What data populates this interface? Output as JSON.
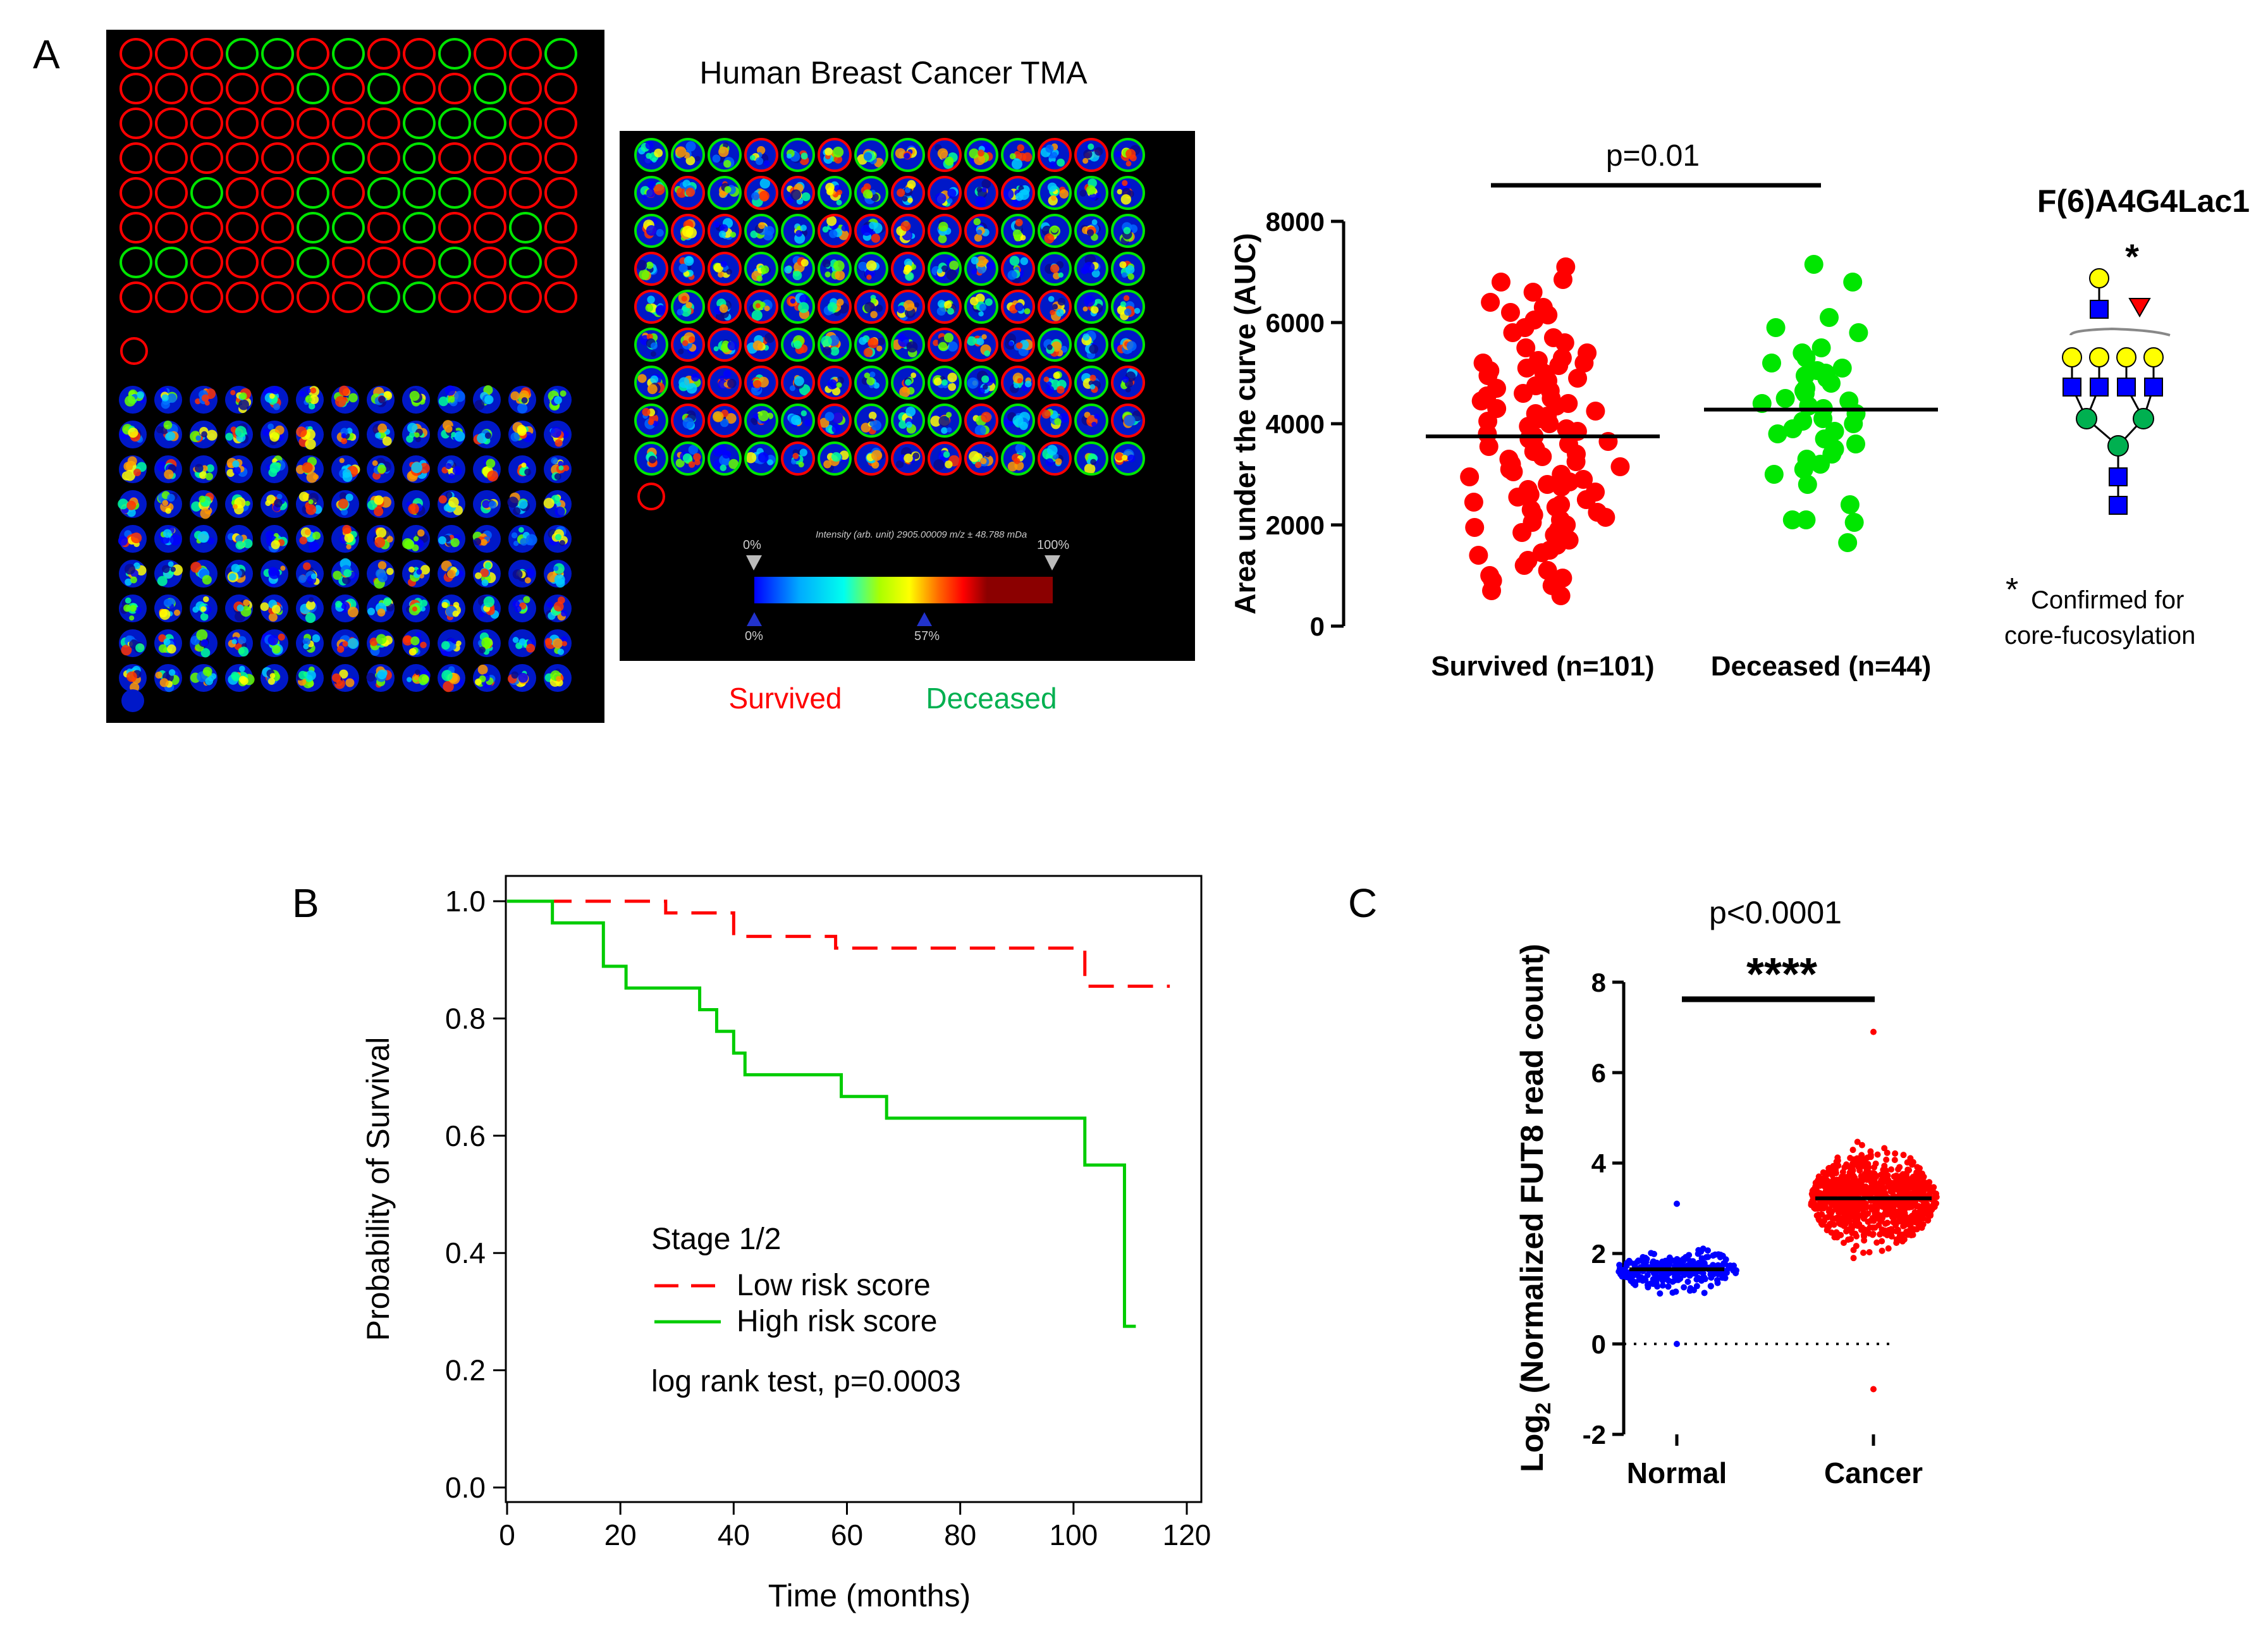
{
  "colors": {
    "survived": "#ff0000",
    "deceased": "#00e600",
    "low_risk": "#ff0000",
    "high_risk": "#00cc00",
    "normal": "#0000ff",
    "cancer": "#ff0000",
    "glycan_galactose": "#ffff00",
    "glycan_glcnac": "#0000ff",
    "glycan_mannose": "#00b050",
    "glycan_fucose": "#ff0000",
    "panel_bg": "#000000"
  },
  "panel_a": {
    "label": "A",
    "tma_title": "Human Breast Cancer TMA",
    "colorbar": {
      "label": "Intensity (arb. unit) 2905.00009 m/z ± 48.788 mDa",
      "top_left": "0%",
      "top_right": "100%",
      "bottom_left": "0%",
      "bottom_mid": "57%"
    },
    "legend": {
      "survived": "Survived",
      "deceased": "Deceased"
    },
    "glycan": {
      "name": "F(6)A4G4Lac1",
      "star": "*",
      "note_star": "*",
      "note_line1": "Confirmed for",
      "note_line2": "core-fucosylation"
    }
  },
  "panel_b": {
    "label": "B"
  },
  "panel_c": {
    "label": "C"
  },
  "chart_data": [
    {
      "id": "auc",
      "type": "scatter",
      "title": "",
      "annotation": "p=0.01",
      "xlabel": "",
      "ylabel": "Area under the curve (AUC)",
      "ylim": [
        0,
        8000
      ],
      "yticks": [
        "0",
        "2000",
        "4000",
        "6000",
        "8000"
      ],
      "categories": [
        "Survived (n=101)",
        "Deceased (n=44)"
      ],
      "series": [
        {
          "name": "Survived",
          "mean": 3750,
          "values": [
            7100,
            6850,
            6800,
            6600,
            6400,
            6300,
            6200,
            6150,
            6050,
            5900,
            5800,
            5700,
            5600,
            5500,
            5400,
            5300,
            5250,
            5200,
            5200,
            5150,
            5100,
            5050,
            5000,
            4950,
            4900,
            4850,
            4800,
            4750,
            4700,
            4650,
            4600,
            4550,
            4500,
            4450,
            4400,
            4350,
            4300,
            4250,
            4200,
            4150,
            4100,
            4050,
            4000,
            3950,
            3900,
            3850,
            3800,
            3750,
            3700,
            3650,
            3600,
            3550,
            3500,
            3450,
            3400,
            3350,
            3300,
            3250,
            3200,
            3150,
            3100,
            3050,
            3000,
            2950,
            2900,
            2850,
            2800,
            2750,
            2700,
            2650,
            2600,
            2550,
            2500,
            2450,
            2400,
            2350,
            2300,
            2250,
            2200,
            2150,
            2100,
            2050,
            2000,
            1950,
            1900,
            1850,
            1800,
            1700,
            1600,
            1500,
            1450,
            1400,
            1300,
            1200,
            1100,
            1000,
            950,
            900,
            800,
            700,
            600
          ]
        },
        {
          "name": "Deceased",
          "mean": 4280,
          "values": [
            7150,
            6800,
            6100,
            5900,
            5800,
            5500,
            5400,
            5300,
            5200,
            5100,
            5050,
            5000,
            4950,
            4900,
            4800,
            4700,
            4650,
            4600,
            4500,
            4450,
            4400,
            4350,
            4300,
            4200,
            4100,
            4050,
            4000,
            3900,
            3850,
            3800,
            3700,
            3600,
            3500,
            3400,
            3300,
            3200,
            3100,
            3000,
            2800,
            2400,
            2100,
            2100,
            2050,
            1650
          ]
        }
      ]
    },
    {
      "id": "km",
      "type": "line",
      "title": "",
      "xlabel": "Time (months)",
      "ylabel": "Probability of Survival",
      "xlim": [
        0,
        120
      ],
      "ylim": [
        0,
        1
      ],
      "xticks": [
        "0",
        "20",
        "40",
        "60",
        "80",
        "100",
        "120"
      ],
      "yticks": [
        "0.0",
        "0.2",
        "0.4",
        "0.6",
        "0.8",
        "1.0"
      ],
      "legend_title": "Stage 1/2",
      "annotation": "log rank test, p=0.0003",
      "series": [
        {
          "name": "Low risk score",
          "style": "dashed",
          "steps": [
            [
              0,
              1.0
            ],
            [
              28,
              0.98
            ],
            [
              40,
              0.94
            ],
            [
              58,
              0.92
            ],
            [
              102,
              0.855
            ],
            [
              117,
              0.855
            ]
          ]
        },
        {
          "name": "High risk score",
          "style": "solid",
          "steps": [
            [
              0,
              1.0
            ],
            [
              8,
              0.963
            ],
            [
              17,
              0.889
            ],
            [
              21,
              0.852
            ],
            [
              34,
              0.815
            ],
            [
              37,
              0.778
            ],
            [
              40,
              0.741
            ],
            [
              42,
              0.704
            ],
            [
              59,
              0.667
            ],
            [
              67,
              0.63
            ],
            [
              102,
              0.55
            ],
            [
              109,
              0.275
            ],
            [
              111,
              0.275
            ]
          ]
        }
      ]
    },
    {
      "id": "fut8",
      "type": "scatter",
      "title": "",
      "annotation_p": "p<0.0001",
      "annotation_sig": "****",
      "xlabel": "",
      "ylabel_prefix": "Log",
      "ylabel_sub": "2",
      "ylabel_rest": " (Normalized FUT8 read count)",
      "ylim": [
        -2,
        8
      ],
      "yticks": [
        "-2",
        "0",
        "2",
        "4",
        "6",
        "8"
      ],
      "categories": [
        "Normal",
        "Cancer"
      ],
      "series": [
        {
          "name": "Normal",
          "median": 1.65,
          "range": [
            0.0,
            3.1
          ]
        },
        {
          "name": "Cancer",
          "median": 3.22,
          "range": [
            -1.0,
            6.9
          ]
        }
      ]
    }
  ]
}
